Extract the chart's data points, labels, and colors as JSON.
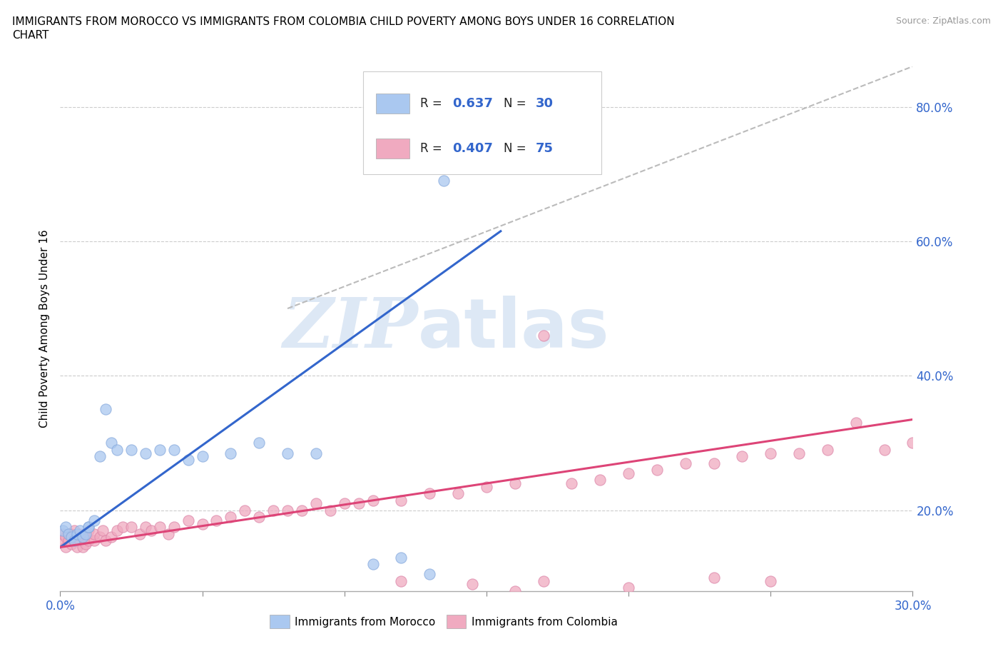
{
  "title_line1": "IMMIGRANTS FROM MOROCCO VS IMMIGRANTS FROM COLOMBIA CHILD POVERTY AMONG BOYS UNDER 16 CORRELATION",
  "title_line2": "CHART",
  "source_text": "Source: ZipAtlas.com",
  "ylabel": "Child Poverty Among Boys Under 16",
  "xlim": [
    0.0,
    0.3
  ],
  "ylim": [
    0.08,
    0.86
  ],
  "x_ticks": [
    0.0,
    0.05,
    0.1,
    0.15,
    0.2,
    0.25,
    0.3
  ],
  "y_ticks": [
    0.2,
    0.4,
    0.6,
    0.8
  ],
  "y_tick_labels": [
    "20.0%",
    "40.0%",
    "60.0%",
    "80.0%"
  ],
  "morocco_R": 0.637,
  "morocco_N": 30,
  "colombia_R": 0.407,
  "colombia_N": 75,
  "morocco_color": "#aac8f0",
  "morocco_edge": "#88aadd",
  "colombia_color": "#f0aac0",
  "colombia_edge": "#dd88aa",
  "morocco_line_color": "#3366cc",
  "colombia_line_color": "#dd4477",
  "ref_line_color": "#bbbbbb",
  "watermark_color": "#dde8f5",
  "morocco_line_x": [
    0.0,
    0.155
  ],
  "morocco_line_y": [
    0.145,
    0.615
  ],
  "colombia_line_x": [
    0.0,
    0.3
  ],
  "colombia_line_y": [
    0.145,
    0.335
  ],
  "ref_line_x": [
    0.08,
    0.3
  ],
  "ref_line_y": [
    0.5,
    0.86
  ],
  "morocco_scatter_x": [
    0.001,
    0.002,
    0.003,
    0.004,
    0.005,
    0.006,
    0.007,
    0.008,
    0.009,
    0.01,
    0.01,
    0.012,
    0.014,
    0.016,
    0.018,
    0.02,
    0.025,
    0.03,
    0.035,
    0.04,
    0.045,
    0.05,
    0.06,
    0.07,
    0.08,
    0.09,
    0.11,
    0.12,
    0.13,
    0.135
  ],
  "morocco_scatter_y": [
    0.17,
    0.175,
    0.165,
    0.16,
    0.155,
    0.165,
    0.17,
    0.16,
    0.165,
    0.175,
    0.175,
    0.185,
    0.28,
    0.35,
    0.3,
    0.29,
    0.29,
    0.285,
    0.29,
    0.29,
    0.275,
    0.28,
    0.285,
    0.3,
    0.285,
    0.285,
    0.12,
    0.13,
    0.105,
    0.69
  ],
  "colombia_scatter_x": [
    0.001,
    0.001,
    0.002,
    0.002,
    0.003,
    0.003,
    0.004,
    0.004,
    0.005,
    0.005,
    0.006,
    0.006,
    0.007,
    0.007,
    0.008,
    0.008,
    0.009,
    0.009,
    0.01,
    0.01,
    0.012,
    0.012,
    0.014,
    0.015,
    0.016,
    0.018,
    0.02,
    0.022,
    0.025,
    0.028,
    0.03,
    0.032,
    0.035,
    0.038,
    0.04,
    0.045,
    0.05,
    0.055,
    0.06,
    0.065,
    0.07,
    0.075,
    0.08,
    0.085,
    0.09,
    0.095,
    0.1,
    0.105,
    0.11,
    0.12,
    0.13,
    0.14,
    0.15,
    0.16,
    0.17,
    0.18,
    0.19,
    0.2,
    0.21,
    0.22,
    0.23,
    0.24,
    0.25,
    0.26,
    0.27,
    0.28,
    0.29,
    0.3,
    0.17,
    0.2,
    0.23,
    0.25,
    0.12,
    0.145,
    0.16
  ],
  "colombia_scatter_y": [
    0.155,
    0.165,
    0.145,
    0.16,
    0.155,
    0.165,
    0.15,
    0.165,
    0.155,
    0.17,
    0.145,
    0.16,
    0.155,
    0.165,
    0.145,
    0.16,
    0.15,
    0.165,
    0.155,
    0.17,
    0.155,
    0.165,
    0.16,
    0.17,
    0.155,
    0.16,
    0.17,
    0.175,
    0.175,
    0.165,
    0.175,
    0.17,
    0.175,
    0.165,
    0.175,
    0.185,
    0.18,
    0.185,
    0.19,
    0.2,
    0.19,
    0.2,
    0.2,
    0.2,
    0.21,
    0.2,
    0.21,
    0.21,
    0.215,
    0.215,
    0.225,
    0.225,
    0.235,
    0.24,
    0.46,
    0.24,
    0.245,
    0.255,
    0.26,
    0.27,
    0.27,
    0.28,
    0.285,
    0.285,
    0.29,
    0.33,
    0.29,
    0.3,
    0.095,
    0.085,
    0.1,
    0.095,
    0.095,
    0.09,
    0.08
  ]
}
